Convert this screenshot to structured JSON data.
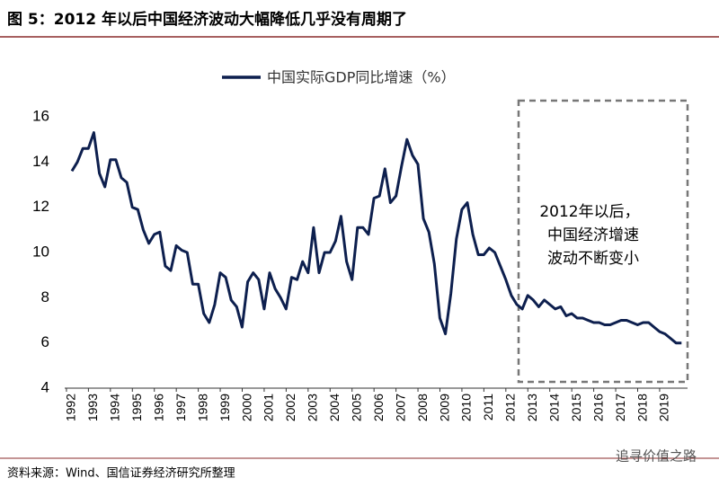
{
  "chart_data": {
    "type": "line",
    "title": "图 5：2012 年以后中国经济波动大幅降低几乎没有周期了",
    "source": "资料来源：Wind、国信证券经济研究所整理",
    "watermark": "追寻价值之路",
    "annotation": [
      "2012年以后，",
      "中国经济增速",
      "波动不断变小"
    ],
    "categories": [
      "1992",
      null,
      null,
      null,
      "1993",
      null,
      null,
      null,
      "1994",
      null,
      null,
      null,
      "1995",
      null,
      null,
      null,
      "1996",
      null,
      null,
      null,
      "1997",
      null,
      null,
      null,
      "1998",
      null,
      null,
      null,
      "1999",
      null,
      null,
      null,
      "2000",
      null,
      null,
      null,
      "2001",
      null,
      null,
      null,
      "2002",
      null,
      null,
      null,
      "2003",
      null,
      null,
      null,
      "2004",
      null,
      null,
      null,
      "2005",
      null,
      null,
      null,
      "2006",
      null,
      null,
      null,
      "2007",
      null,
      null,
      null,
      "2008",
      null,
      null,
      null,
      "2009",
      null,
      null,
      null,
      "2010",
      null,
      null,
      null,
      "2011",
      null,
      null,
      null,
      "2012",
      null,
      null,
      null,
      "2013",
      null,
      null,
      null,
      "2014",
      null,
      null,
      null,
      "2015",
      null,
      null,
      null,
      "2016",
      null,
      null,
      null,
      "2017",
      null,
      null,
      null,
      "2018",
      null,
      null,
      null,
      "2019",
      null,
      null,
      null
    ],
    "series": [
      {
        "name": "中国实际GDP同比增速（%）",
        "color": "#0d1f4e",
        "values": [
          13.6,
          14.0,
          14.6,
          14.6,
          15.3,
          13.5,
          12.9,
          14.1,
          14.1,
          13.3,
          13.1,
          12.0,
          11.9,
          11.0,
          10.4,
          10.8,
          10.9,
          9.4,
          9.2,
          10.3,
          10.1,
          10.0,
          8.6,
          8.6,
          7.3,
          6.9,
          7.7,
          9.1,
          8.9,
          7.9,
          7.6,
          6.7,
          8.7,
          9.1,
          8.8,
          7.5,
          9.1,
          8.4,
          8.0,
          7.5,
          8.9,
          8.8,
          9.6,
          9.1,
          11.1,
          9.1,
          10.0,
          10.0,
          10.5,
          11.6,
          9.6,
          8.8,
          11.1,
          11.1,
          10.8,
          12.4,
          12.5,
          13.7,
          12.2,
          12.5,
          13.8,
          15.0,
          14.3,
          13.9,
          11.5,
          10.9,
          9.5,
          7.1,
          6.4,
          8.2,
          10.6,
          11.9,
          12.2,
          10.8,
          9.9,
          9.9,
          10.2,
          10.0,
          9.4,
          8.8,
          8.1,
          7.7,
          7.5,
          8.1,
          7.9,
          7.6,
          7.9,
          7.7,
          7.5,
          7.6,
          7.2,
          7.3,
          7.1,
          7.1,
          7.0,
          6.9,
          6.9,
          6.8,
          6.8,
          6.9,
          7.0,
          7.0,
          6.9,
          6.8,
          6.9,
          6.9,
          6.7,
          6.5,
          6.4,
          6.2,
          6.0,
          6.0
        ]
      }
    ],
    "ylim": [
      4,
      16
    ],
    "yticks": [
      4,
      6,
      8,
      10,
      12,
      14,
      16
    ]
  }
}
